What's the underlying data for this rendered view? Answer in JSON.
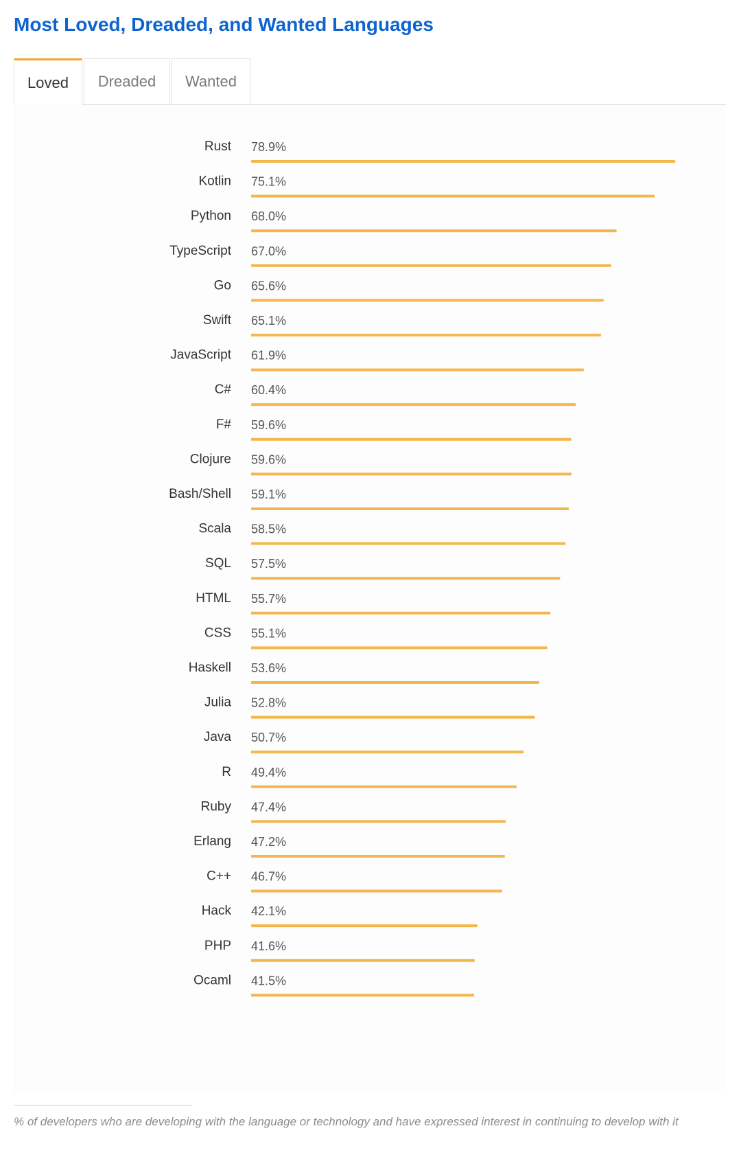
{
  "title": "Most Loved, Dreaded, and Wanted Languages",
  "tabs": [
    {
      "label": "Loved",
      "active": true
    },
    {
      "label": "Dreaded",
      "active": false
    },
    {
      "label": "Wanted",
      "active": false
    }
  ],
  "colors": {
    "title": "#0e64cf",
    "bar": "#f4b74e",
    "tab_accent": "#f4a52b"
  },
  "chart_data": {
    "type": "bar",
    "orientation": "horizontal",
    "title": "",
    "xlabel": "",
    "ylabel": "",
    "value_suffix": "%",
    "categories": [
      "Rust",
      "Kotlin",
      "Python",
      "TypeScript",
      "Go",
      "Swift",
      "JavaScript",
      "C#",
      "F#",
      "Clojure",
      "Bash/Shell",
      "Scala",
      "SQL",
      "HTML",
      "CSS",
      "Haskell",
      "Julia",
      "Java",
      "R",
      "Ruby",
      "Erlang",
      "C++",
      "Hack",
      "PHP",
      "Ocaml"
    ],
    "values": [
      78.9,
      75.1,
      68.0,
      67.0,
      65.6,
      65.1,
      61.9,
      60.4,
      59.6,
      59.6,
      59.1,
      58.5,
      57.5,
      55.7,
      55.1,
      53.6,
      52.8,
      50.7,
      49.4,
      47.4,
      47.2,
      46.7,
      42.1,
      41.6,
      41.5
    ],
    "xlim": [
      0,
      78.9
    ],
    "grid": false,
    "legend": "none"
  },
  "footnote": "% of developers who are developing with the language or technology and have expressed interest in continuing to develop with it"
}
